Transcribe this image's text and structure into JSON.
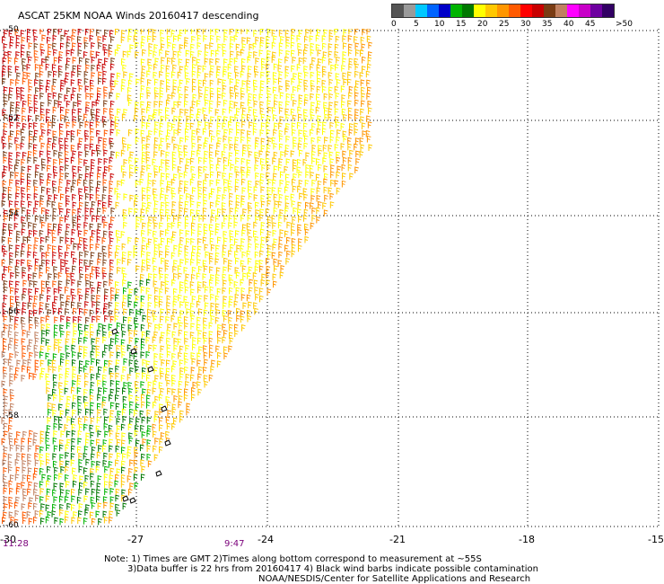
{
  "title": "ASCAT 25KM NOAA Winds 20160417 descending",
  "legend": {
    "colors": [
      "#555555",
      "#9a9a9a",
      "#00c8ff",
      "#0064ff",
      "#0000c8",
      "#00b400",
      "#007800",
      "#ffff00",
      "#ffc800",
      "#ff9600",
      "#ff5a00",
      "#ff0000",
      "#c80000",
      "#7a3c14",
      "#c08060",
      "#ff00ff",
      "#c800c8",
      "#6e00a0",
      "#320064"
    ],
    "labels": [
      "0",
      "5",
      "10",
      "15",
      "20",
      "25",
      "30",
      "35",
      "40",
      "45",
      ">50 knots"
    ]
  },
  "axes": {
    "y_labels": [
      "-50",
      "-52",
      "-54",
      "-56",
      "-58",
      "-60"
    ],
    "x_labels": [
      "-30",
      "-27",
      "-24",
      "-21",
      "-18",
      "-15"
    ]
  },
  "times": [
    "11:28",
    "9:47"
  ],
  "notes": [
    "Note: 1) Times are GMT 2)Times along bottom correspond to measurement at ~55S",
    "3)Data buffer is 22 hrs from 20160417 4) Black wind barbs indicate possible contamination",
    "NOAA/NESDIS/Center for Satellite Applications and Research"
  ]
}
